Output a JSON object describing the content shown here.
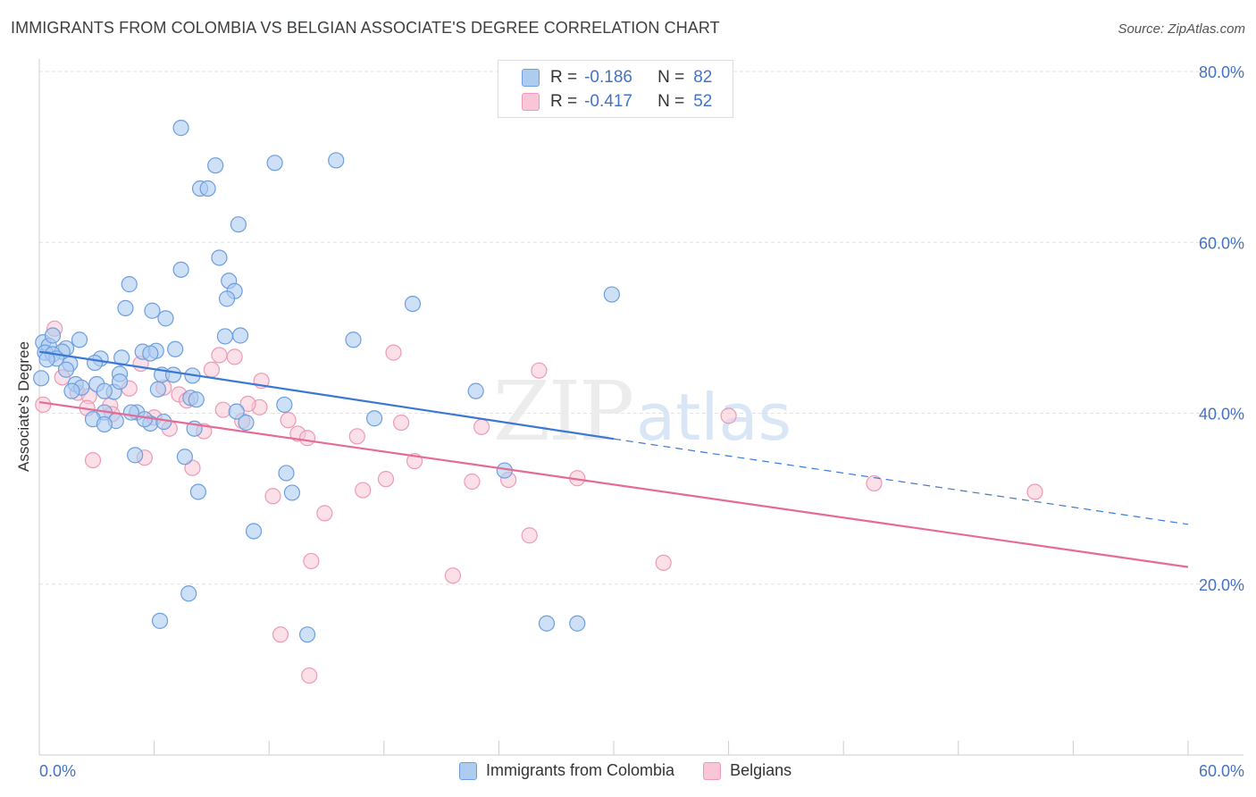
{
  "title": "IMMIGRANTS FROM COLOMBIA VS BELGIAN ASSOCIATE'S DEGREE CORRELATION CHART",
  "source": "Source: ZipAtlas.com",
  "watermark": {
    "zip": "ZIP",
    "atlas": "atlas"
  },
  "colors": {
    "blue_fill": "#aecbf0",
    "blue_stroke": "#6d9ee0",
    "blue_line": "#3a78d4",
    "pink_fill": "#f8c6d6",
    "pink_stroke": "#ec9ab5",
    "pink_line": "#e56b95",
    "tick_text": "#4472c4",
    "grid": "#e2e2e2"
  },
  "legend_top": {
    "rows": [
      {
        "r_label": "R =",
        "r_value": "-0.186",
        "n_label": "N =",
        "n_value": "82",
        "series": "blue"
      },
      {
        "r_label": "R =",
        "r_value": "-0.417",
        "n_label": "N =",
        "n_value": "52",
        "series": "pink"
      }
    ]
  },
  "legend_bottom": [
    {
      "label": "Immigrants from Colombia",
      "series": "blue"
    },
    {
      "label": "Belgians",
      "series": "pink"
    }
  ],
  "chart_data": {
    "type": "scatter",
    "title": "IMMIGRANTS FROM COLOMBIA VS BELGIAN ASSOCIATE'S DEGREE CORRELATION CHART",
    "xlabel": "",
    "ylabel": "Associate's Degree",
    "xlim": [
      0,
      60
    ],
    "ylim": [
      0,
      80
    ],
    "x_tick_labels": [
      "0.0%",
      "60.0%"
    ],
    "y_ticks": [
      20,
      40,
      60,
      80
    ],
    "y_tick_labels": [
      "20.0%",
      "40.0%",
      "60.0%",
      "80.0%"
    ],
    "grid": true,
    "series": [
      {
        "name": "Immigrants from Colombia",
        "color": "blue",
        "trend": {
          "x_solid": [
            0,
            30
          ],
          "y_solid": [
            47.2,
            37.0
          ],
          "x_dashed": [
            30,
            60
          ],
          "y_dashed": [
            37.0,
            27.0
          ]
        },
        "points": [
          [
            7.4,
            73.4
          ],
          [
            15.5,
            69.6
          ],
          [
            12.3,
            69.3
          ],
          [
            9.2,
            69.0
          ],
          [
            8.4,
            66.3
          ],
          [
            8.8,
            66.3
          ],
          [
            10.4,
            62.1
          ],
          [
            9.4,
            58.2
          ],
          [
            7.4,
            56.8
          ],
          [
            4.7,
            55.1
          ],
          [
            9.9,
            55.5
          ],
          [
            10.2,
            54.3
          ],
          [
            29.9,
            53.9
          ],
          [
            9.8,
            53.4
          ],
          [
            4.5,
            52.3
          ],
          [
            19.5,
            52.8
          ],
          [
            5.9,
            52.0
          ],
          [
            6.6,
            51.1
          ],
          [
            10.5,
            49.1
          ],
          [
            2.1,
            48.6
          ],
          [
            16.4,
            48.6
          ],
          [
            0.2,
            48.3
          ],
          [
            0.5,
            47.9
          ],
          [
            1.4,
            47.6
          ],
          [
            0.3,
            47.1
          ],
          [
            1.2,
            47.2
          ],
          [
            0.7,
            46.9
          ],
          [
            5.4,
            47.2
          ],
          [
            6.1,
            47.3
          ],
          [
            5.8,
            47.0
          ],
          [
            3.2,
            46.4
          ],
          [
            4.3,
            46.5
          ],
          [
            0.9,
            46.4
          ],
          [
            1.6,
            45.8
          ],
          [
            1.4,
            45.1
          ],
          [
            6.4,
            44.5
          ],
          [
            4.2,
            44.6
          ],
          [
            7.0,
            44.5
          ],
          [
            3.0,
            43.4
          ],
          [
            1.9,
            43.4
          ],
          [
            2.2,
            43.0
          ],
          [
            3.9,
            42.5
          ],
          [
            8.0,
            44.4
          ],
          [
            1.7,
            42.6
          ],
          [
            3.4,
            42.6
          ],
          [
            6.2,
            42.8
          ],
          [
            7.9,
            41.8
          ],
          [
            8.2,
            41.6
          ],
          [
            3.4,
            40.1
          ],
          [
            5.1,
            40.1
          ],
          [
            4.8,
            40.1
          ],
          [
            10.3,
            40.2
          ],
          [
            2.8,
            39.3
          ],
          [
            4.0,
            39.1
          ],
          [
            3.4,
            38.7
          ],
          [
            5.8,
            38.8
          ],
          [
            5.5,
            39.3
          ],
          [
            6.5,
            39.0
          ],
          [
            10.8,
            38.9
          ],
          [
            8.1,
            38.2
          ],
          [
            17.5,
            39.4
          ],
          [
            22.8,
            42.6
          ],
          [
            5.0,
            35.1
          ],
          [
            7.6,
            34.9
          ],
          [
            12.9,
            33.0
          ],
          [
            24.3,
            33.3
          ],
          [
            8.3,
            30.8
          ],
          [
            13.2,
            30.7
          ],
          [
            11.2,
            26.2
          ],
          [
            7.8,
            18.9
          ],
          [
            6.3,
            15.7
          ],
          [
            26.5,
            15.4
          ],
          [
            28.1,
            15.4
          ],
          [
            14.0,
            14.1
          ],
          [
            0.1,
            44.1
          ],
          [
            0.4,
            46.3
          ],
          [
            2.9,
            45.9
          ],
          [
            7.1,
            47.5
          ],
          [
            9.7,
            49.0
          ],
          [
            12.8,
            41.0
          ],
          [
            0.7,
            49.1
          ],
          [
            4.2,
            43.7
          ]
        ]
      },
      {
        "name": "Belgians",
        "color": "pink",
        "trend": {
          "x_solid": [
            0,
            60
          ],
          "y_solid": [
            41.3,
            22.0
          ]
        },
        "points": [
          [
            0.8,
            49.9
          ],
          [
            9.4,
            46.8
          ],
          [
            10.2,
            46.6
          ],
          [
            18.5,
            47.1
          ],
          [
            26.1,
            45.0
          ],
          [
            5.3,
            45.8
          ],
          [
            9.0,
            45.1
          ],
          [
            11.6,
            43.8
          ],
          [
            1.2,
            44.2
          ],
          [
            2.0,
            42.4
          ],
          [
            2.6,
            42.0
          ],
          [
            4.7,
            42.9
          ],
          [
            6.5,
            43.0
          ],
          [
            7.3,
            42.2
          ],
          [
            7.7,
            41.5
          ],
          [
            2.5,
            40.6
          ],
          [
            9.6,
            40.4
          ],
          [
            3.7,
            40.9
          ],
          [
            11.5,
            40.7
          ],
          [
            3.8,
            39.9
          ],
          [
            6.0,
            39.5
          ],
          [
            13.0,
            39.2
          ],
          [
            10.6,
            39.1
          ],
          [
            18.9,
            38.9
          ],
          [
            6.8,
            38.2
          ],
          [
            8.6,
            37.9
          ],
          [
            13.5,
            37.6
          ],
          [
            14.0,
            37.1
          ],
          [
            16.6,
            37.3
          ],
          [
            36.0,
            39.7
          ],
          [
            23.1,
            38.4
          ],
          [
            2.8,
            34.5
          ],
          [
            5.5,
            34.8
          ],
          [
            8.0,
            33.6
          ],
          [
            19.6,
            34.4
          ],
          [
            18.1,
            32.3
          ],
          [
            22.6,
            32.0
          ],
          [
            24.5,
            32.2
          ],
          [
            28.1,
            32.4
          ],
          [
            43.6,
            31.8
          ],
          [
            52.0,
            30.8
          ],
          [
            12.2,
            30.3
          ],
          [
            16.9,
            31.0
          ],
          [
            14.9,
            28.3
          ],
          [
            25.6,
            25.7
          ],
          [
            14.2,
            22.7
          ],
          [
            32.6,
            22.5
          ],
          [
            21.6,
            21.0
          ],
          [
            12.6,
            14.1
          ],
          [
            14.1,
            9.3
          ],
          [
            0.2,
            41.0
          ],
          [
            10.9,
            41.1
          ]
        ]
      }
    ]
  }
}
